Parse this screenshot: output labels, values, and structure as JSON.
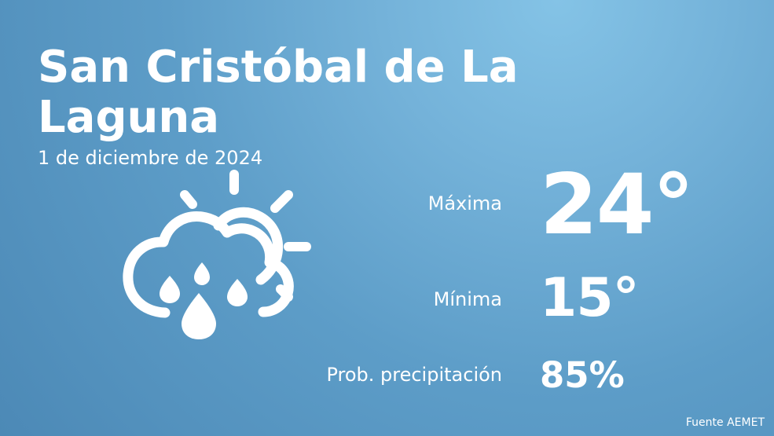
{
  "header": {
    "city": "San Cristóbal de La Laguna",
    "date": "1 de diciembre de 2024"
  },
  "weather_icon": {
    "name": "sun-cloud-rain-icon",
    "color": "#ffffff"
  },
  "stats": {
    "max_label": "Máxima",
    "max_value": "24°",
    "min_label": "Mínima",
    "min_value": "15°",
    "precip_label": "Prob. precipitación",
    "precip_value": "85%"
  },
  "footer": {
    "source": "Fuente AEMET"
  },
  "colors": {
    "background_light": "#84c3e6",
    "background_dark": "#4c89b6",
    "text": "#ffffff"
  }
}
